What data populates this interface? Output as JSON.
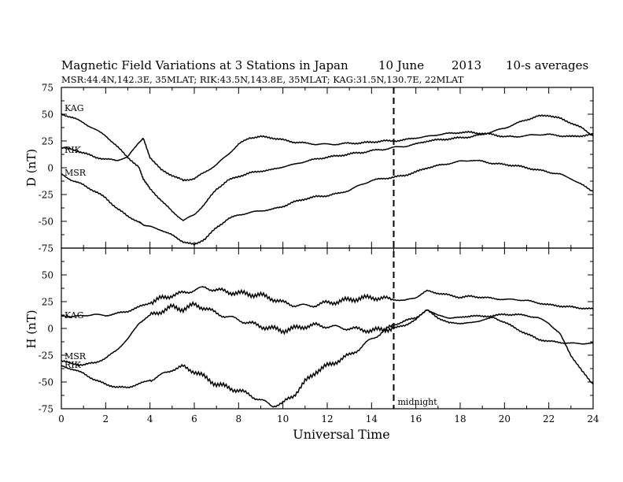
{
  "header": {
    "title": "Magnetic Field Variations at 3 Stations in Japan",
    "date_day": "10 June",
    "date_year": "2013",
    "averaging": "10-s averages",
    "stations_line": "MSR:44.4N,142.3E, 35MLAT;   RIK:43.5N,143.8E, 35MLAT;   KAG:31.5N,130.7E, 22MLAT"
  },
  "colors": {
    "axis": "#000000",
    "trace": "#000000",
    "background": "#ffffff"
  },
  "chart_data": [
    {
      "type": "line",
      "panel": "top",
      "title": "",
      "xlabel": "",
      "ylabel": "D (nT)",
      "xlim": [
        0,
        24
      ],
      "ylim": [
        -75,
        75
      ],
      "yticks": [
        75,
        50,
        25,
        0,
        -25,
        -50,
        -75
      ],
      "grid": false,
      "x": [
        0,
        0.5,
        1,
        1.5,
        2,
        2.5,
        3,
        3.5,
        3.7,
        4,
        4.5,
        5,
        5.5,
        6,
        6.5,
        7,
        7.5,
        8,
        8.5,
        9,
        9.5,
        10,
        10.5,
        11,
        11.5,
        12,
        12.5,
        13,
        13.5,
        14,
        14.5,
        15,
        15.5,
        16,
        16.5,
        17,
        17.5,
        18,
        18.5,
        19,
        19.5,
        20,
        20.5,
        21,
        21.5,
        22,
        22.5,
        23,
        23.5,
        24
      ],
      "series": [
        {
          "name": "KAG",
          "values": [
            50,
            47,
            42,
            36,
            30,
            20,
            10,
            0,
            -10,
            -20,
            -30,
            -41,
            -49,
            -44,
            -33,
            -20,
            -12,
            -8,
            -5,
            -3,
            -2,
            1,
            3,
            6,
            8,
            10,
            11,
            13,
            14,
            16,
            17,
            19,
            20,
            22,
            25,
            26,
            27,
            28,
            29,
            31,
            34,
            37,
            41,
            45,
            48,
            49,
            46,
            42,
            37,
            30
          ]
        },
        {
          "name": "RIK",
          "values": [
            19,
            17,
            14,
            10,
            8,
            7,
            10,
            24,
            27,
            10,
            -2,
            -7,
            -12,
            -10,
            -4,
            3,
            12,
            22,
            28,
            29,
            28,
            26,
            24,
            23,
            22,
            22,
            22,
            23,
            23,
            24,
            25,
            25,
            26,
            28,
            29,
            31,
            32,
            33,
            33,
            32,
            31,
            29,
            29,
            30,
            31,
            31,
            30,
            29,
            30,
            31
          ]
        },
        {
          "name": "MSR",
          "values": [
            -6,
            -12,
            -16,
            -22,
            -28,
            -38,
            -45,
            -51,
            -53,
            -55,
            -58,
            -63,
            -69,
            -72,
            -66,
            -56,
            -48,
            -44,
            -42,
            -40,
            -39,
            -36,
            -32,
            -29,
            -27,
            -26,
            -24,
            -21,
            -16,
            -12,
            -10,
            -9,
            -7,
            -4,
            0,
            2,
            4,
            6,
            7,
            6,
            4,
            3,
            2,
            0,
            -2,
            -4,
            -6,
            -10,
            -16,
            -22
          ]
        }
      ]
    },
    {
      "type": "line",
      "panel": "bottom",
      "title": "",
      "xlabel": "Universal Time",
      "ylabel": "H (nT)",
      "xlim": [
        0,
        24
      ],
      "ylim": [
        -75,
        75
      ],
      "yticks": [
        75,
        50,
        25,
        0,
        -25,
        -50,
        -75
      ],
      "xticks": [
        0,
        2,
        4,
        6,
        8,
        10,
        12,
        14,
        16,
        18,
        20,
        22,
        24
      ],
      "grid": false,
      "annotations": [
        {
          "x": 15,
          "text": "midnight",
          "style": "dashed vertical line"
        }
      ],
      "x": [
        0,
        0.5,
        1,
        1.5,
        2,
        2.5,
        3,
        3.5,
        4,
        4.5,
        5,
        5.5,
        6,
        6.5,
        7,
        7.5,
        8,
        8.5,
        9,
        9.5,
        10,
        10.5,
        11,
        11.5,
        12,
        12.5,
        13,
        13.5,
        14,
        14.5,
        15,
        15.5,
        16,
        16.5,
        17,
        17.5,
        18,
        18.5,
        19,
        19.5,
        20,
        20.5,
        21,
        21.5,
        22,
        22.5,
        23,
        23.5,
        24
      ],
      "series": [
        {
          "name": "KAG",
          "values": [
            12,
            11,
            12,
            13,
            12,
            14,
            16,
            20,
            24,
            28,
            31,
            33,
            36,
            38,
            36,
            34,
            33,
            32,
            31,
            28,
            24,
            22,
            21,
            22,
            24,
            25,
            27,
            28,
            29,
            28,
            27,
            26,
            29,
            35,
            33,
            31,
            29,
            30,
            29,
            28,
            27,
            27,
            26,
            24,
            22,
            21,
            20,
            19,
            18
          ]
        },
        {
          "name": "MSR",
          "values": [
            -30,
            -33,
            -34,
            -32,
            -28,
            -20,
            -10,
            5,
            12,
            16,
            20,
            18,
            22,
            19,
            14,
            11,
            8,
            5,
            2,
            0,
            -2,
            0,
            2,
            3,
            2,
            1,
            0,
            -1,
            -2,
            -1,
            0,
            3,
            8,
            18,
            12,
            10,
            10,
            12,
            11,
            12,
            13,
            13,
            12,
            10,
            5,
            -5,
            -25,
            -40,
            -52
          ]
        },
        {
          "name": "RIK",
          "values": [
            -35,
            -38,
            -42,
            -48,
            -52,
            -55,
            -55,
            -52,
            -48,
            -44,
            -38,
            -36,
            -40,
            -46,
            -52,
            -55,
            -58,
            -62,
            -67,
            -72,
            -70,
            -62,
            -50,
            -40,
            -35,
            -30,
            -25,
            -18,
            -10,
            -3,
            3,
            7,
            10,
            17,
            10,
            5,
            5,
            5,
            8,
            10,
            6,
            0,
            -5,
            -10,
            -12,
            -13,
            -14,
            -14,
            -14
          ]
        }
      ]
    }
  ]
}
